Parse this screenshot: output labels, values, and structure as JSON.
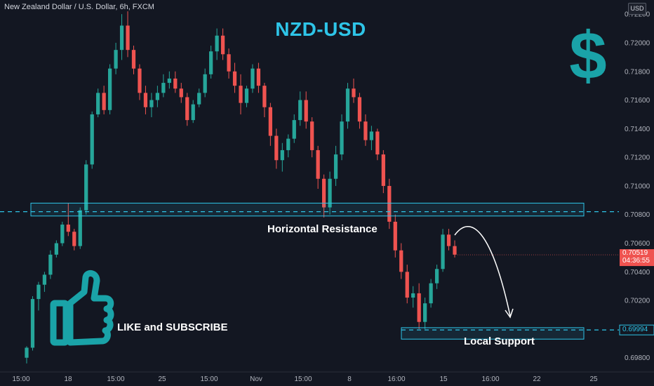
{
  "header": {
    "symbol_description": "New Zealand Dollar / U.S. Dollar, 6h, FXCM",
    "currency_button": "USD"
  },
  "chart_data": {
    "type": "candlestick",
    "title": "NZD-USD",
    "xlabel": "",
    "ylabel": "",
    "ylim": [
      0.6973,
      0.7224
    ],
    "y_ticks": [
      "0.72200",
      "0.72000",
      "0.71800",
      "0.71600",
      "0.71400",
      "0.71200",
      "0.71000",
      "0.70800",
      "0.70600",
      "0.70400",
      "0.70200",
      "0.70000",
      "0.69800"
    ],
    "x_ticks": [
      "15:00",
      "18",
      "15:00",
      "25",
      "15:00",
      "Nov",
      "15:00",
      "8",
      "16:00",
      "15",
      "16:00",
      "22",
      "25"
    ],
    "grid": false,
    "current_price": {
      "value": "0.70519",
      "countdown": "04:36:55",
      "numeric": 0.70519
    },
    "support_level": {
      "value": "0.69994",
      "numeric": 0.69994
    },
    "resistance_level": 0.7082,
    "zones": [
      {
        "label": "Horizontal Resistance",
        "low": 0.7079,
        "high": 0.7088
      },
      {
        "label": "Local Support",
        "low": 0.6993,
        "high": 0.7001
      }
    ],
    "annotations": [
      "LIKE and SUBSCRIBE"
    ],
    "icons": [
      "dollar-sign-icon",
      "thumbs-up-icon"
    ],
    "colors": {
      "up": "#26a69a",
      "down": "#ef5350",
      "accent": "#2ec5e8",
      "background": "#131722"
    },
    "candles_ohlc": [
      [
        0.698,
        0.6988,
        0.6976,
        0.6987
      ],
      [
        0.6987,
        0.7023,
        0.6985,
        0.7021
      ],
      [
        0.7021,
        0.7033,
        0.7013,
        0.7031
      ],
      [
        0.7031,
        0.704,
        0.7026,
        0.7038
      ],
      [
        0.7038,
        0.7055,
        0.7035,
        0.7052
      ],
      [
        0.7052,
        0.7062,
        0.705,
        0.706
      ],
      [
        0.706,
        0.7075,
        0.7058,
        0.7073
      ],
      [
        0.7073,
        0.7088,
        0.7065,
        0.7068
      ],
      [
        0.7068,
        0.707,
        0.7055,
        0.7058
      ],
      [
        0.7058,
        0.7085,
        0.7056,
        0.7083
      ],
      [
        0.7083,
        0.7118,
        0.708,
        0.7115
      ],
      [
        0.7115,
        0.7152,
        0.7112,
        0.715
      ],
      [
        0.715,
        0.7168,
        0.7148,
        0.7165
      ],
      [
        0.7165,
        0.717,
        0.715,
        0.7153
      ],
      [
        0.7153,
        0.7185,
        0.715,
        0.7182
      ],
      [
        0.7182,
        0.72,
        0.7178,
        0.7195
      ],
      [
        0.7195,
        0.722,
        0.7188,
        0.7212
      ],
      [
        0.7212,
        0.7222,
        0.719,
        0.7195
      ],
      [
        0.7195,
        0.7198,
        0.7178,
        0.7182
      ],
      [
        0.7182,
        0.7185,
        0.716,
        0.7165
      ],
      [
        0.7165,
        0.717,
        0.715,
        0.7155
      ],
      [
        0.7155,
        0.7165,
        0.7148,
        0.716
      ],
      [
        0.716,
        0.717,
        0.7155,
        0.7165
      ],
      [
        0.7165,
        0.7178,
        0.7162,
        0.7172
      ],
      [
        0.7172,
        0.718,
        0.7168,
        0.7175
      ],
      [
        0.7175,
        0.718,
        0.7165,
        0.7168
      ],
      [
        0.7168,
        0.7172,
        0.7158,
        0.7162
      ],
      [
        0.7162,
        0.7165,
        0.7142,
        0.7146
      ],
      [
        0.7146,
        0.716,
        0.7144,
        0.7157
      ],
      [
        0.7157,
        0.7168,
        0.7155,
        0.7165
      ],
      [
        0.7165,
        0.7182,
        0.7162,
        0.7178
      ],
      [
        0.7178,
        0.7198,
        0.7175,
        0.7194
      ],
      [
        0.7194,
        0.721,
        0.7188,
        0.7205
      ],
      [
        0.7205,
        0.721,
        0.7188,
        0.7192
      ],
      [
        0.7192,
        0.7196,
        0.7175,
        0.718
      ],
      [
        0.718,
        0.7186,
        0.7165,
        0.717
      ],
      [
        0.717,
        0.7178,
        0.715,
        0.7158
      ],
      [
        0.7158,
        0.717,
        0.7155,
        0.7168
      ],
      [
        0.7168,
        0.7185,
        0.7165,
        0.7182
      ],
      [
        0.7182,
        0.7186,
        0.7165,
        0.717
      ],
      [
        0.717,
        0.7172,
        0.7148,
        0.7155
      ],
      [
        0.7155,
        0.7158,
        0.7128,
        0.7135
      ],
      [
        0.7135,
        0.714,
        0.7112,
        0.7118
      ],
      [
        0.7118,
        0.713,
        0.711,
        0.7125
      ],
      [
        0.7125,
        0.7136,
        0.712,
        0.7133
      ],
      [
        0.7133,
        0.715,
        0.713,
        0.7146
      ],
      [
        0.7146,
        0.7166,
        0.7142,
        0.716
      ],
      [
        0.716,
        0.7166,
        0.714,
        0.7145
      ],
      [
        0.7145,
        0.7148,
        0.712,
        0.7125
      ],
      [
        0.7125,
        0.7128,
        0.7098,
        0.7105
      ],
      [
        0.7105,
        0.7108,
        0.7078,
        0.7085
      ],
      [
        0.7085,
        0.711,
        0.708,
        0.7105
      ],
      [
        0.7105,
        0.7128,
        0.71,
        0.7122
      ],
      [
        0.7122,
        0.715,
        0.7118,
        0.7145
      ],
      [
        0.7145,
        0.7172,
        0.714,
        0.7168
      ],
      [
        0.7168,
        0.7175,
        0.7158,
        0.7162
      ],
      [
        0.7162,
        0.7165,
        0.714,
        0.7145
      ],
      [
        0.7145,
        0.715,
        0.7128,
        0.7132
      ],
      [
        0.7132,
        0.7142,
        0.7125,
        0.7138
      ],
      [
        0.7138,
        0.714,
        0.7118,
        0.7122
      ],
      [
        0.7122,
        0.7125,
        0.7095,
        0.71
      ],
      [
        0.71,
        0.7105,
        0.707,
        0.7075
      ],
      [
        0.7075,
        0.708,
        0.705,
        0.7055
      ],
      [
        0.7055,
        0.706,
        0.7035,
        0.704
      ],
      [
        0.704,
        0.7045,
        0.7018,
        0.7022
      ],
      [
        0.7022,
        0.703,
        0.7015,
        0.7025
      ],
      [
        0.7025,
        0.7032,
        0.7,
        0.7005
      ],
      [
        0.7005,
        0.7022,
        0.7,
        0.7018
      ],
      [
        0.7018,
        0.7035,
        0.7015,
        0.7032
      ],
      [
        0.7032,
        0.7045,
        0.7028,
        0.7042
      ],
      [
        0.7042,
        0.707,
        0.704,
        0.7066
      ],
      [
        0.7066,
        0.707,
        0.7055,
        0.7058
      ],
      [
        0.7058,
        0.7062,
        0.705,
        0.7052
      ]
    ]
  },
  "annotations": {
    "resistance_label": "Horizontal Resistance",
    "support_label": "Local Support",
    "like_label": "LIKE and SUBSCRIBE"
  }
}
